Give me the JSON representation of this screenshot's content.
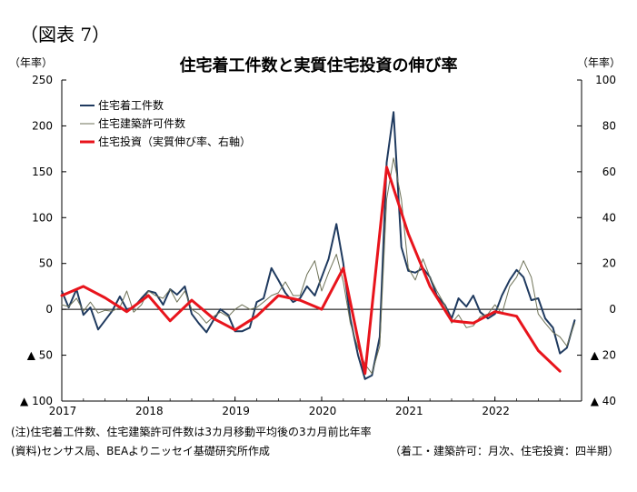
{
  "figure_label": "（図表 7）",
  "chart_data": {
    "type": "line",
    "title": "住宅着工件数と実質住宅投資の伸び率",
    "left_axis": {
      "unit": "（年率）",
      "ylim": [
        -100,
        250
      ],
      "ticks": [
        250,
        200,
        150,
        100,
        50,
        0,
        -50,
        -100
      ],
      "tick_labels": [
        "250",
        "200",
        "150",
        "100",
        "50",
        "0",
        "▲ 50",
        "▲ 100"
      ]
    },
    "right_axis": {
      "unit": "（年率）",
      "ylim": [
        -40,
        100
      ],
      "ticks": [
        100,
        80,
        60,
        40,
        20,
        0,
        -20,
        -40
      ],
      "tick_labels": [
        "100",
        "80",
        "60",
        "40",
        "20",
        "0",
        "▲ 20",
        "▲ 40"
      ]
    },
    "x_axis": {
      "range": [
        2017.0,
        2023.0
      ],
      "ticks": [
        2017,
        2018,
        2019,
        2020,
        2021,
        2022
      ],
      "tick_labels": [
        "2017",
        "2018",
        "2019",
        "2020",
        "2021",
        "2022"
      ]
    },
    "grid": false,
    "legend_position": "top-left",
    "series": [
      {
        "name": "住宅着工件数",
        "axis": "left",
        "color": "#1f3a5f",
        "x": [
          2017.0,
          2017.08,
          2017.17,
          2017.25,
          2017.33,
          2017.42,
          2017.5,
          2017.58,
          2017.67,
          2017.75,
          2017.83,
          2017.92,
          2018.0,
          2018.08,
          2018.17,
          2018.25,
          2018.33,
          2018.42,
          2018.5,
          2018.58,
          2018.67,
          2018.75,
          2018.83,
          2018.92,
          2019.0,
          2019.08,
          2019.17,
          2019.25,
          2019.33,
          2019.42,
          2019.5,
          2019.58,
          2019.67,
          2019.75,
          2019.83,
          2019.92,
          2020.0,
          2020.08,
          2020.17,
          2020.25,
          2020.33,
          2020.42,
          2020.5,
          2020.58,
          2020.67,
          2020.75,
          2020.83,
          2020.92,
          2021.0,
          2021.08,
          2021.17,
          2021.25,
          2021.33,
          2021.42,
          2021.5,
          2021.58,
          2021.67,
          2021.75,
          2021.83,
          2021.92,
          2022.0,
          2022.08,
          2022.17,
          2022.25,
          2022.33,
          2022.42,
          2022.5,
          2022.58,
          2022.67,
          2022.75,
          2022.83,
          2022.92
        ],
        "values": [
          20,
          2,
          22,
          -6,
          2,
          -22,
          -12,
          -2,
          14,
          0,
          2,
          12,
          20,
          18,
          5,
          22,
          16,
          25,
          -5,
          -15,
          -25,
          -12,
          0,
          -6,
          -24,
          -24,
          -20,
          8,
          12,
          45,
          32,
          18,
          8,
          12,
          25,
          15,
          35,
          55,
          93,
          50,
          -10,
          -50,
          -76,
          -72,
          -30,
          160,
          215,
          68,
          42,
          40,
          45,
          35,
          15,
          5,
          -10,
          12,
          3,
          15,
          -3,
          -10,
          -5,
          15,
          32,
          43,
          35,
          10,
          12,
          -10,
          -20,
          -48,
          -42,
          -12
        ]
      },
      {
        "name": "住宅建築許可件数",
        "axis": "left",
        "color": "#6e7257",
        "x": [
          2017.0,
          2017.08,
          2017.17,
          2017.25,
          2017.33,
          2017.42,
          2017.5,
          2017.58,
          2017.67,
          2017.75,
          2017.83,
          2017.92,
          2018.0,
          2018.08,
          2018.17,
          2018.25,
          2018.33,
          2018.42,
          2018.5,
          2018.58,
          2018.67,
          2018.75,
          2018.83,
          2018.92,
          2019.0,
          2019.08,
          2019.17,
          2019.25,
          2019.33,
          2019.42,
          2019.5,
          2019.58,
          2019.67,
          2019.75,
          2019.83,
          2019.92,
          2020.0,
          2020.08,
          2020.17,
          2020.25,
          2020.33,
          2020.42,
          2020.5,
          2020.58,
          2020.67,
          2020.75,
          2020.83,
          2020.92,
          2021.0,
          2021.08,
          2021.17,
          2021.25,
          2021.33,
          2021.42,
          2021.5,
          2021.58,
          2021.67,
          2021.75,
          2021.83,
          2021.92,
          2022.0,
          2022.08,
          2022.17,
          2022.25,
          2022.33,
          2022.42,
          2022.5,
          2022.58,
          2022.67,
          2022.75,
          2022.83,
          2022.92
        ],
        "values": [
          5,
          3,
          12,
          -2,
          8,
          -4,
          -1,
          -2,
          2,
          20,
          -3,
          5,
          20,
          15,
          12,
          22,
          8,
          20,
          0,
          -5,
          -15,
          -8,
          -3,
          -8,
          0,
          5,
          0,
          2,
          8,
          15,
          18,
          30,
          15,
          15,
          38,
          53,
          20,
          40,
          60,
          30,
          -15,
          -42,
          -60,
          -70,
          -40,
          120,
          165,
          120,
          45,
          32,
          55,
          35,
          20,
          5,
          -15,
          -6,
          -20,
          -18,
          -8,
          -5,
          5,
          -5,
          25,
          35,
          53,
          35,
          -5,
          -15,
          -25,
          -30,
          -40,
          -15
        ]
      },
      {
        "name": "住宅投資（実質伸び率、右軸）",
        "axis": "right",
        "color": "#e8141c",
        "x": [
          2017.0,
          2017.25,
          2017.5,
          2017.75,
          2018.0,
          2018.25,
          2018.5,
          2018.75,
          2019.0,
          2019.25,
          2019.5,
          2019.75,
          2020.0,
          2020.25,
          2020.5,
          2020.75,
          2021.0,
          2021.25,
          2021.5,
          2021.75,
          2022.0,
          2022.25,
          2022.5,
          2022.75
        ],
        "values": [
          6,
          10,
          5,
          -1,
          6,
          -5,
          4,
          -4,
          -9,
          -3,
          6,
          4,
          0,
          18,
          -28,
          62,
          33,
          10,
          -5,
          -6,
          -1,
          -3,
          -18,
          -27
        ]
      }
    ]
  },
  "footnotes": {
    "note": "(注)住宅着工件数、住宅建築許可件数は3カ月移動平均後の3カ月前比年率",
    "source": "(資料)センサス局、BEAよりニッセイ基礎研究所作成",
    "frequency": "（着工・建築許可：月次、住宅投資：四半期）"
  }
}
